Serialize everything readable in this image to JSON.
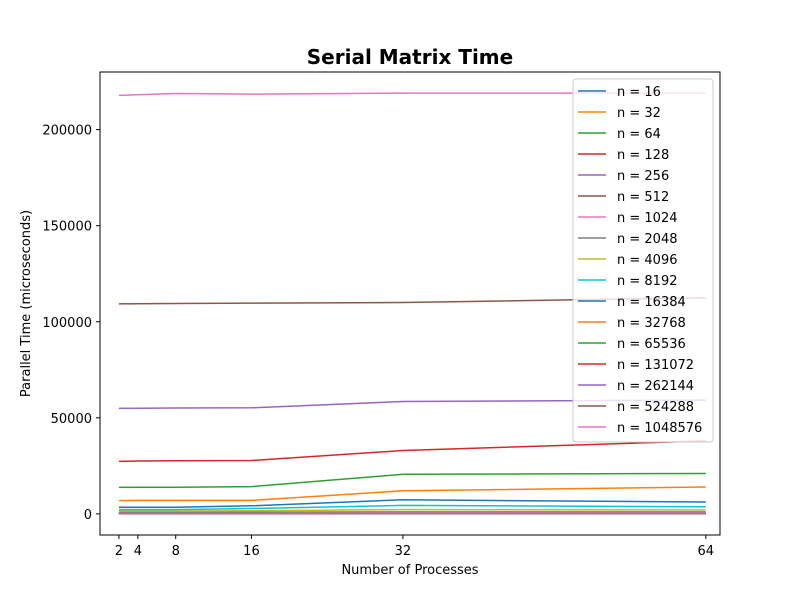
{
  "chart_data": {
    "type": "line",
    "title": "Serial Matrix Time",
    "xlabel": "Number of Processes",
    "ylabel": "Parallel Time (microseconds)",
    "x": [
      2,
      4,
      8,
      16,
      32,
      64
    ],
    "xticks": [
      2,
      4,
      8,
      16,
      32,
      64
    ],
    "yticks": [
      0,
      50000,
      100000,
      150000,
      200000
    ],
    "xlim": [
      0,
      65.5
    ],
    "ylim": [
      -11000,
      230000
    ],
    "grid": false,
    "legend_position": "top-right",
    "series": [
      {
        "name": "n = 16",
        "color": "#1f77b4",
        "values": [
          10,
          10,
          10,
          10,
          10,
          10
        ]
      },
      {
        "name": "n = 32",
        "color": "#ff7f0e",
        "values": [
          20,
          20,
          20,
          20,
          20,
          20
        ]
      },
      {
        "name": "n = 64",
        "color": "#2ca02c",
        "values": [
          35,
          35,
          35,
          35,
          35,
          35
        ]
      },
      {
        "name": "n = 128",
        "color": "#d62728",
        "values": [
          70,
          70,
          70,
          70,
          70,
          70
        ]
      },
      {
        "name": "n = 256",
        "color": "#9467bd",
        "values": [
          130,
          130,
          130,
          130,
          130,
          130
        ]
      },
      {
        "name": "n = 512",
        "color": "#8c564b",
        "values": [
          260,
          260,
          260,
          260,
          260,
          260
        ]
      },
      {
        "name": "n = 1024",
        "color": "#e377c2",
        "values": [
          500,
          500,
          500,
          500,
          500,
          500
        ]
      },
      {
        "name": "n = 2048",
        "color": "#7f7f7f",
        "values": [
          900,
          900,
          900,
          900,
          1000,
          1000
        ]
      },
      {
        "name": "n = 4096",
        "color": "#bcbd22",
        "values": [
          1500,
          1500,
          1500,
          1600,
          2200,
          2000
        ]
      },
      {
        "name": "n = 8192",
        "color": "#17becf",
        "values": [
          2200,
          2200,
          2200,
          2800,
          4400,
          3700
        ]
      },
      {
        "name": "n = 16384",
        "color": "#1f77b4",
        "values": [
          3400,
          3400,
          3400,
          4200,
          7300,
          6200
        ]
      },
      {
        "name": "n = 32768",
        "color": "#ff7f0e",
        "values": [
          6900,
          7000,
          7000,
          7000,
          12000,
          14000
        ]
      },
      {
        "name": "n = 65536",
        "color": "#2ca02c",
        "values": [
          13800,
          13900,
          13900,
          14200,
          20600,
          21000
        ]
      },
      {
        "name": "n = 131072",
        "color": "#d62728",
        "values": [
          27300,
          27500,
          27600,
          27800,
          33000,
          38000
        ]
      },
      {
        "name": "n = 262144",
        "color": "#9467bd",
        "values": [
          54900,
          55000,
          55100,
          55200,
          58500,
          59200
        ]
      },
      {
        "name": "n = 524288",
        "color": "#8c564b",
        "values": [
          109300,
          109400,
          109500,
          109700,
          110000,
          112500
        ]
      },
      {
        "name": "n = 1048576",
        "color": "#e377c2",
        "values": [
          217800,
          218200,
          218800,
          218500,
          219000,
          219000
        ]
      }
    ]
  }
}
